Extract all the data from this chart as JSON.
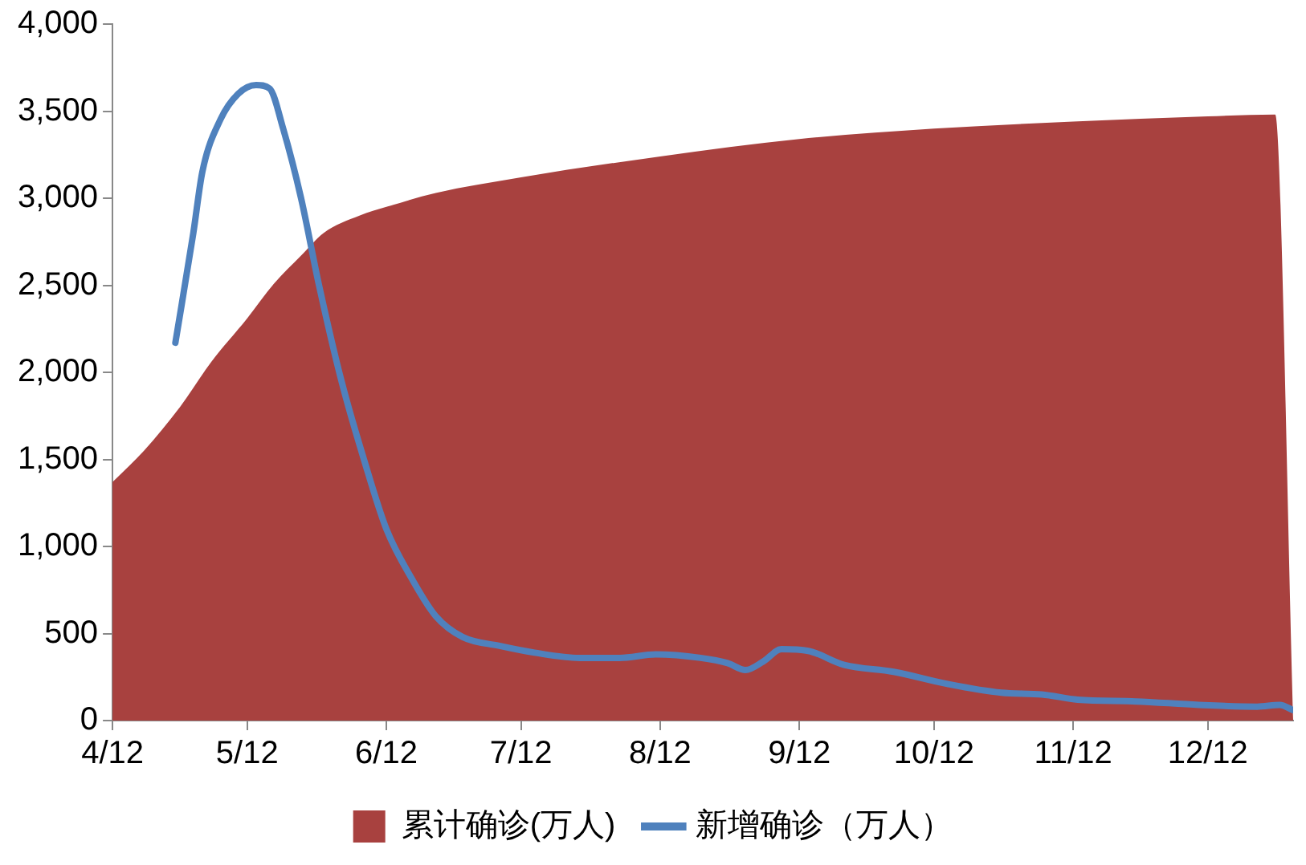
{
  "chart_data": {
    "type": "area",
    "x": [
      "--04-12",
      "--04-19",
      "--04-27",
      "--05-04",
      "--05-12",
      "--05-18",
      "--05-24",
      "--05-29",
      "--06-06",
      "--06-12",
      "--06-23",
      "--07-12",
      "--08-12",
      "--09-12",
      "--10-12",
      "--11-12",
      "--12-12",
      "--12-27",
      "--12-31"
    ],
    "series": [
      {
        "name": "累计确诊(万人)",
        "color": "#a8413f",
        "values": [
          1370,
          1550,
          1800,
          2060,
          2310,
          2510,
          2670,
          2800,
          2900,
          2950,
          3030,
          3120,
          3240,
          3340,
          3400,
          3440,
          3470,
          3480,
          0
        ]
      },
      {
        "name": "新增确诊（万人）",
        "type": "line",
        "color": "#4f81bd",
        "x": [
          "--04-26",
          "--04-30",
          "--05-02",
          "--05-06",
          "--05-10",
          "--05-14",
          "--05-17",
          "--05-20",
          "--05-24",
          "--05-28",
          "--06-02",
          "--06-07",
          "--06-12",
          "--06-18",
          "--06-23",
          "--06-29",
          "--07-07",
          "--07-15",
          "--07-25",
          "--08-03",
          "--08-11",
          "--08-21",
          "--08-27",
          "--08-31",
          "--09-04",
          "--09-08",
          "--09-14",
          "--09-22",
          "--10-03",
          "--10-15",
          "--10-27",
          "--11-05",
          "--11-13",
          "--11-26",
          "--12-10",
          "--12-23",
          "--12-28",
          "--12-31"
        ],
        "values": [
          2170,
          2800,
          3150,
          3450,
          3600,
          3650,
          3630,
          3400,
          3000,
          2500,
          1950,
          1500,
          1100,
          800,
          600,
          480,
          430,
          390,
          360,
          360,
          380,
          360,
          330,
          290,
          340,
          410,
          400,
          320,
          280,
          210,
          160,
          150,
          120,
          110,
          90,
          80,
          90,
          60
        ]
      }
    ],
    "xlim": [
      "--04-12",
      "--12-31"
    ],
    "xticks": [
      {
        "value": "--04-12",
        "label": "4/12"
      },
      {
        "value": "--05-12",
        "label": "5/12"
      },
      {
        "value": "--06-12",
        "label": "6/12"
      },
      {
        "value": "--07-12",
        "label": "7/12"
      },
      {
        "value": "--08-12",
        "label": "8/12"
      },
      {
        "value": "--09-12",
        "label": "9/12"
      },
      {
        "value": "--10-12",
        "label": "10/12"
      },
      {
        "value": "--11-12",
        "label": "11/12"
      },
      {
        "value": "--12-12",
        "label": "12/12"
      }
    ],
    "ylim": [
      0,
      4000
    ],
    "yticks": [
      0,
      {
        "value": 500,
        "label": "500"
      },
      {
        "value": 1000,
        "label": "1,000"
      },
      {
        "value": 1500,
        "label": "1,500"
      },
      {
        "value": 2000,
        "label": "2,000"
      },
      {
        "value": 2500,
        "label": "2,500"
      },
      {
        "value": 3000,
        "label": "3,000"
      },
      {
        "value": 3500,
        "label": "3,500"
      },
      {
        "value": 4000,
        "label": "4,000"
      }
    ],
    "grid": false,
    "legend": "bottom",
    "marker": "none",
    "line_style": "solid"
  }
}
